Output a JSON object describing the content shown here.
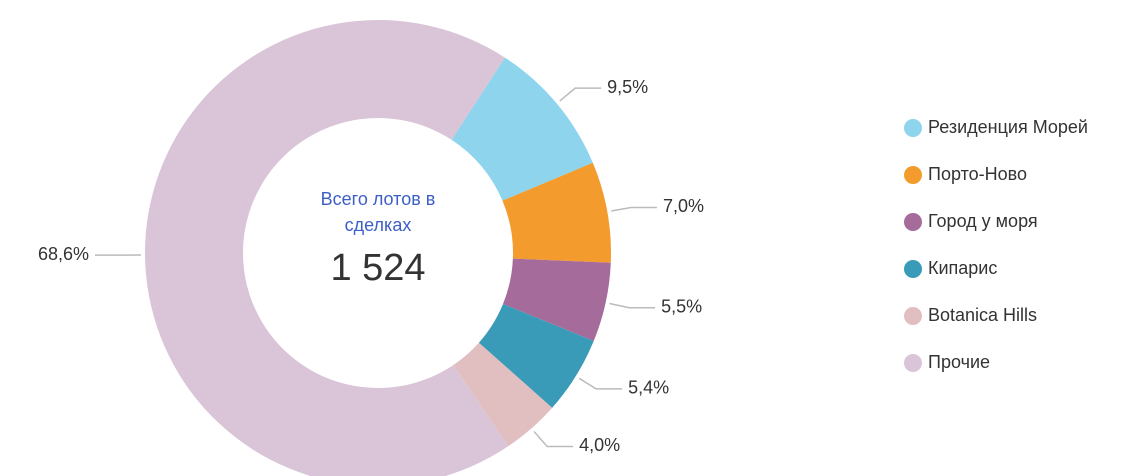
{
  "chart_data": {
    "type": "donut",
    "center_label": "Всего лотов в сделках",
    "center_value": "1 524",
    "categories": [
      "Резиденция Морей",
      "Порто-Ново",
      "Город у моря",
      "Кипарис",
      "Botanica Hills",
      "Прочие"
    ],
    "values": [
      9.5,
      7.0,
      5.5,
      5.4,
      4.0,
      68.6
    ],
    "value_labels": [
      "9,5%",
      "7,0%",
      "5,5%",
      "5,4%",
      "4,0%",
      "68,6%"
    ],
    "colors": [
      "#8dd4ec",
      "#f39c2d",
      "#a56b9b",
      "#3a9bb8",
      "#e1bebf",
      "#dac5d8"
    ],
    "legend": "right"
  }
}
